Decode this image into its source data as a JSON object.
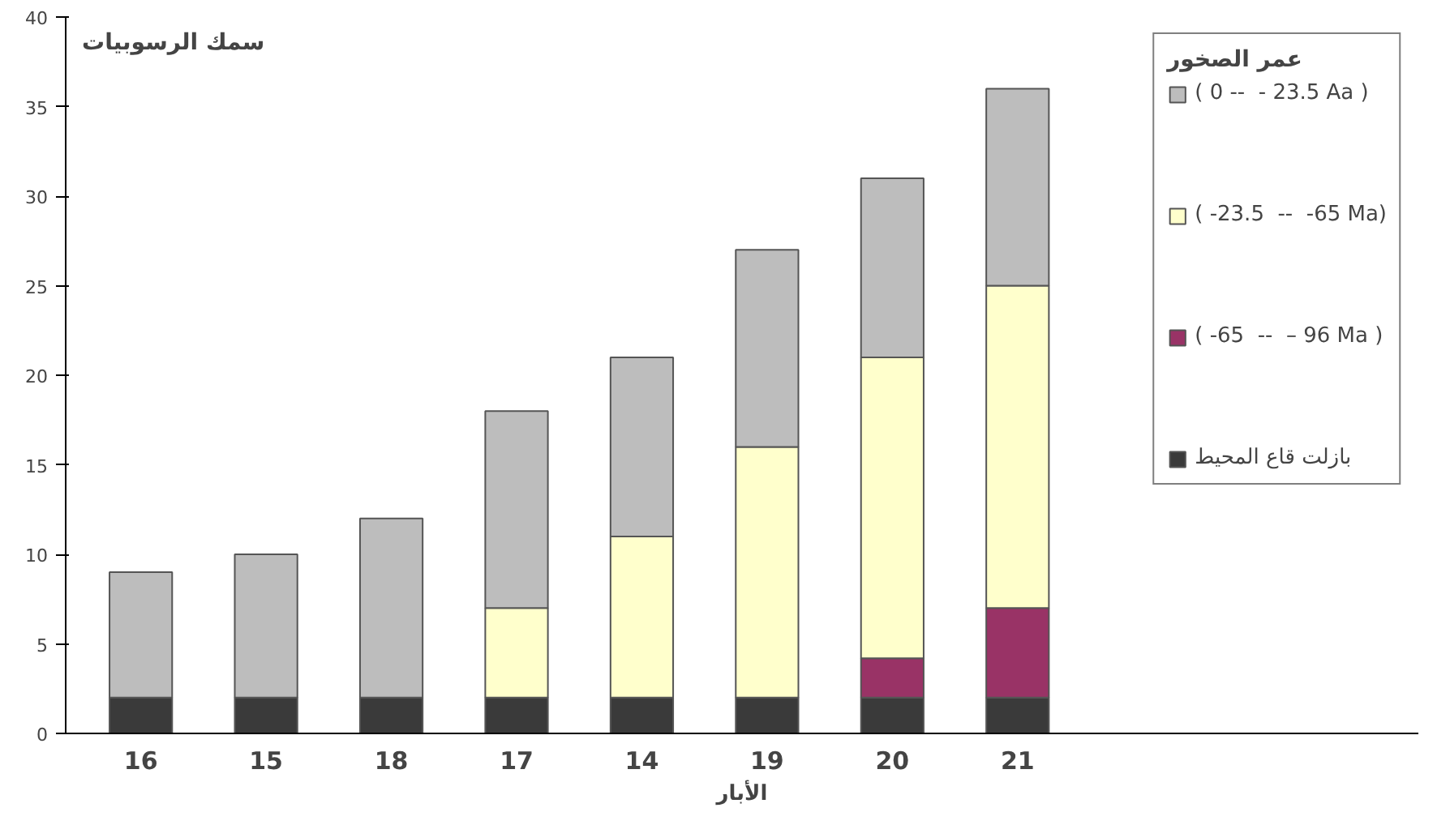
{
  "chart_data": {
    "type": "bar",
    "stacked": true,
    "ylabel": "سمك الرسوبيات",
    "xlabel": "الأبار",
    "legend_title": "عمر الصخور",
    "categories": [
      "16",
      "15",
      "18",
      "17",
      "14",
      "19",
      "20",
      "21"
    ],
    "series": [
      {
        "name": "بازلت قاع المحيط",
        "color": "#3a3a3a",
        "values": [
          2,
          2,
          2,
          2,
          2,
          2,
          2,
          2
        ]
      },
      {
        "name": "( -65  --  – 96 Ma )",
        "color": "#993366",
        "values": [
          0,
          0,
          0,
          0,
          0,
          0,
          2.2,
          5
        ]
      },
      {
        "name": "( -23.5  --  -65 Ma)",
        "color": "#ffffcc",
        "values": [
          0,
          0,
          0,
          5,
          9,
          14,
          16.8,
          18
        ]
      },
      {
        "name": "( 0 --  - 23.5 Aa )",
        "color": "#bdbdbd",
        "values": [
          7,
          8,
          10,
          11,
          10,
          11,
          10,
          11
        ]
      }
    ],
    "ylim": [
      0,
      40
    ],
    "yticks": [
      0,
      5,
      10,
      15,
      20,
      25,
      30,
      35,
      40
    ],
    "grid": false,
    "legend": "right"
  }
}
